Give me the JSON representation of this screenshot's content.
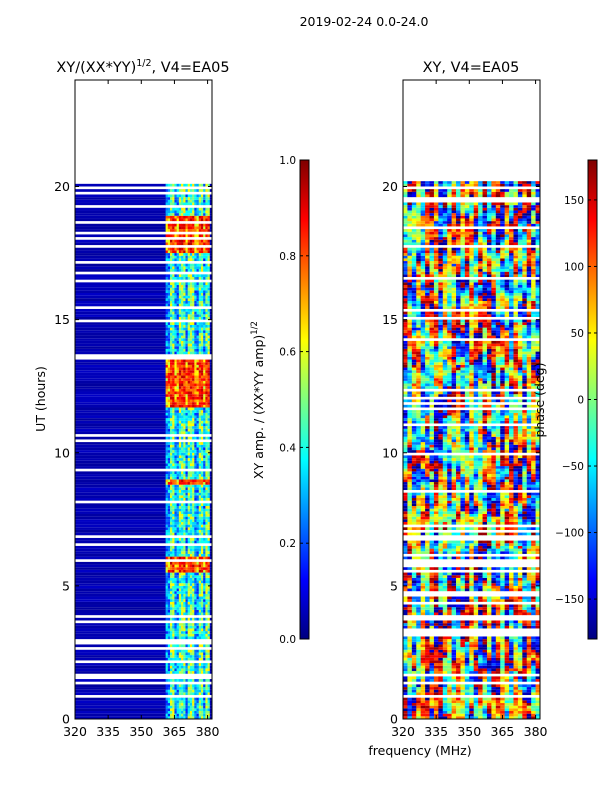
{
  "suptitle": "2019-02-24 0.0-24.0",
  "xlabel_shared": "frequency (MHz)",
  "colors": {
    "jet": [
      "#00007f",
      "#0000ff",
      "#007fff",
      "#00ffff",
      "#7fff7f",
      "#ffff00",
      "#ff7f00",
      "#ff0000",
      "#7f0000"
    ],
    "background": "#ffffff"
  },
  "chart_data": [
    {
      "type": "heatmap",
      "title": "XY/(XX*YY)^1/2, V4=EA05",
      "title_main": "XY/(XX*YY)",
      "title_sup": "1/2",
      "title_tail": ", V4=EA05",
      "xlabel": "",
      "ylabel": "UT (hours)",
      "xlim": [
        320,
        382
      ],
      "ylim": [
        0,
        24
      ],
      "xticks": [
        320,
        335,
        350,
        365,
        380
      ],
      "yticks": [
        0,
        5,
        10,
        15,
        20
      ],
      "data_extent_hours": [
        0,
        20.1
      ],
      "active_band_mhz": [
        361,
        381
      ],
      "channel_columns_mhz": [
        363.5,
        368,
        372,
        376.5,
        380
      ],
      "colorbar": {
        "label_main": "XY amp. / (XX*YY amp)",
        "label_sup": "1/2",
        "range": [
          0.0,
          1.0
        ],
        "ticks": [
          0.0,
          0.2,
          0.4,
          0.6,
          0.8,
          1.0
        ],
        "tick_labels": [
          "0.0",
          "0.2",
          "0.4",
          "0.6",
          "0.8",
          "1.0"
        ]
      },
      "high_amplitude_hours": [
        [
          5.4,
          6.0
        ],
        [
          11.6,
          13.6
        ],
        [
          17.4,
          18.8
        ],
        [
          8.7,
          8.9
        ]
      ]
    },
    {
      "type": "heatmap",
      "title": "XY, V4=EA05",
      "xlabel": "frequency (MHz)",
      "ylabel": "",
      "xlim": [
        320,
        382
      ],
      "ylim": [
        0,
        24
      ],
      "xticks": [
        320,
        335,
        350,
        365,
        380
      ],
      "yticks": [
        0,
        5,
        10,
        15,
        20
      ],
      "data_extent_hours": [
        0,
        20.2
      ],
      "colorbar": {
        "label_main": "phase (deg)",
        "label_sup": "",
        "range": [
          -180,
          180
        ],
        "ticks": [
          -150,
          -100,
          -50,
          0,
          50,
          100,
          150
        ],
        "tick_labels": [
          "−150",
          "−100",
          "−50",
          "0",
          "50",
          "100",
          "150"
        ]
      }
    }
  ]
}
